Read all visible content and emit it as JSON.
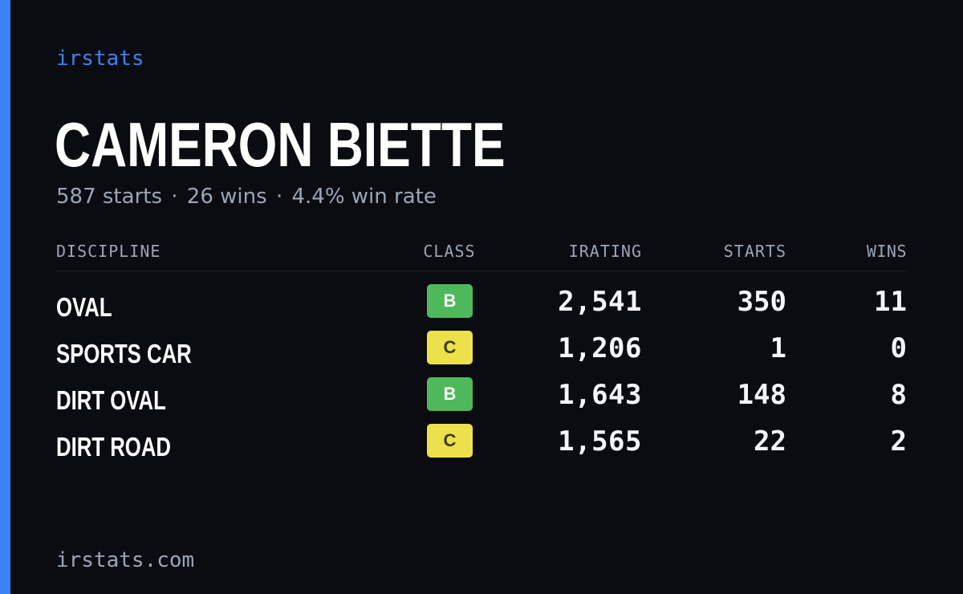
{
  "brand": "irstats",
  "driver": {
    "name": "CAMERON BIETTE",
    "starts_text": "587 starts",
    "wins_text": "26 wins",
    "winrate_text": "4.4% win rate",
    "separator": "·"
  },
  "table": {
    "headers": {
      "discipline": "DISCIPLINE",
      "class": "CLASS",
      "irating": "IRATING",
      "starts": "STARTS",
      "wins": "WINS"
    },
    "rows": [
      {
        "discipline": "OVAL",
        "class": "B",
        "irating": "2,541",
        "starts": "350",
        "wins": "11"
      },
      {
        "discipline": "SPORTS CAR",
        "class": "C",
        "irating": "1,206",
        "starts": "1",
        "wins": "0"
      },
      {
        "discipline": "DIRT OVAL",
        "class": "B",
        "irating": "1,643",
        "starts": "148",
        "wins": "8"
      },
      {
        "discipline": "DIRT ROAD",
        "class": "C",
        "irating": "1,565",
        "starts": "22",
        "wins": "2"
      }
    ]
  },
  "class_colors": {
    "B": "#4fb85a",
    "C": "#ece14c"
  },
  "accent_color": "#3b82f6",
  "footer": "irstats.com"
}
